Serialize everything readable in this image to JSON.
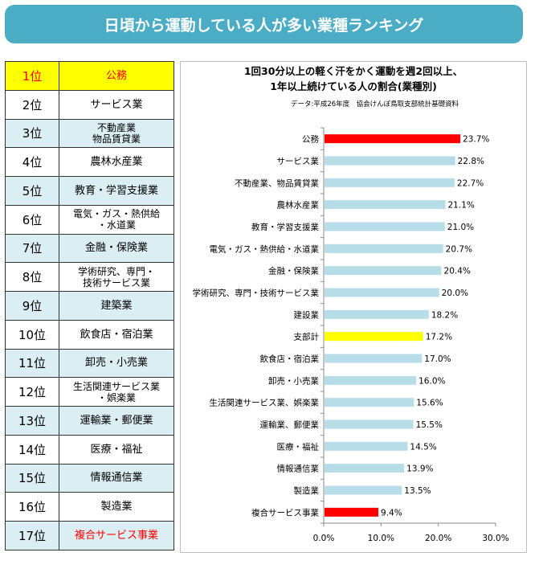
{
  "banner": {
    "title": "日頃から運動している人が多い業種ランキング"
  },
  "ranking": [
    {
      "rank": "1位",
      "industry": "公務",
      "lines": [
        "公務"
      ]
    },
    {
      "rank": "2位",
      "industry": "サービス業",
      "lines": [
        "サービス業"
      ]
    },
    {
      "rank": "3位",
      "industry": "不動産業 物品賃貸業",
      "lines": [
        "不動産業",
        "物品賃貸業"
      ]
    },
    {
      "rank": "4位",
      "industry": "農林水産業",
      "lines": [
        "農林水産業"
      ]
    },
    {
      "rank": "5位",
      "industry": "教育・学習支援業",
      "lines": [
        "教育・学習支援業"
      ]
    },
    {
      "rank": "6位",
      "industry": "電気・ガス・熱供給・水道業",
      "lines": [
        "電気・ガス・熱供給",
        "・水道業"
      ]
    },
    {
      "rank": "7位",
      "industry": "金融・保険業",
      "lines": [
        "金融・保険業"
      ]
    },
    {
      "rank": "8位",
      "industry": "学術研究、専門・技術サービス業",
      "lines": [
        "学術研究、専門・",
        "技術サービス業"
      ]
    },
    {
      "rank": "9位",
      "industry": "建築業",
      "lines": [
        "建築業"
      ]
    },
    {
      "rank": "10位",
      "industry": "飲食店・宿泊業",
      "lines": [
        "飲食店・宿泊業"
      ]
    },
    {
      "rank": "11位",
      "industry": "卸売・小売業",
      "lines": [
        "卸売・小売業"
      ]
    },
    {
      "rank": "12位",
      "industry": "生活関連サービス業・娯楽業",
      "lines": [
        "生活関連サービス業",
        "・娯楽業"
      ]
    },
    {
      "rank": "13位",
      "industry": "運輸業・郵便業",
      "lines": [
        "運輸業・郵便業"
      ]
    },
    {
      "rank": "14位",
      "industry": "医療・福祉",
      "lines": [
        "医療・福祉"
      ]
    },
    {
      "rank": "15位",
      "industry": "情報通信業",
      "lines": [
        "情報通信業"
      ]
    },
    {
      "rank": "16位",
      "industry": "製造業",
      "lines": [
        "製造業"
      ]
    },
    {
      "rank": "17位",
      "industry": "複合サービス事業",
      "lines": [
        "複合サービス事業"
      ]
    }
  ],
  "colors": {
    "banner": "#4bacc6",
    "row_blue": "#daeef3",
    "row_highlight": "#ffff00",
    "bar_default": "#b7dee8",
    "bar_red": "#ff0000",
    "bar_yellow": "#ffff00",
    "text_red": "#ff0000"
  },
  "chart_data": {
    "type": "bar",
    "orientation": "horizontal",
    "title_lines": [
      "1回30分以上の軽く汗をかく運動を週2回以上、",
      "1年以上続けている人の割合(業種別)"
    ],
    "source": "データ:平成26年度　協会けんぽ鳥取支部統計基礎資料",
    "categories": [
      "公務",
      "サービス業",
      "不動産業、物品賃貸業",
      "農林水産業",
      "教育・学習支援業",
      "電気・ガス・熱供給・水道業",
      "金融・保険業",
      "学術研究、専門・技術サービス業",
      "建設業",
      "支部計",
      "飲食店・宿泊業",
      "卸売・小売業",
      "生活関連サービス業、娯楽業",
      "運輸業、郵便業",
      "医療・福祉",
      "情報通信業",
      "製造業",
      "複合サービス事業"
    ],
    "values": [
      23.7,
      22.8,
      22.7,
      21.1,
      21.0,
      20.7,
      20.4,
      20.0,
      18.2,
      17.2,
      17.0,
      16.0,
      15.6,
      15.5,
      14.5,
      13.9,
      13.5,
      9.4
    ],
    "value_labels": [
      "23.7%",
      "22.8%",
      "22.7%",
      "21.1%",
      "21.0%",
      "20.7%",
      "20.4%",
      "20.0%",
      "18.2%",
      "17.2%",
      "17.0%",
      "16.0%",
      "15.6%",
      "15.5%",
      "14.5%",
      "13.9%",
      "13.5%",
      "9.4%"
    ],
    "bar_colors": [
      "red",
      "default",
      "default",
      "default",
      "default",
      "default",
      "default",
      "default",
      "default",
      "yellow",
      "default",
      "default",
      "default",
      "default",
      "default",
      "default",
      "default",
      "red"
    ],
    "xlim": [
      0,
      30
    ],
    "xticks": [
      0,
      10,
      20,
      30
    ],
    "xtick_labels": [
      "0.0%",
      "10.0%",
      "20.0%",
      "30.0%"
    ],
    "grid": false,
    "legend": "none"
  }
}
